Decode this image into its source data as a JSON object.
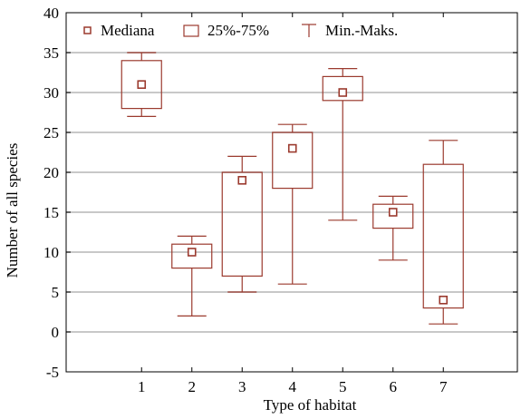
{
  "chart_data": {
    "type": "boxplot",
    "xlabel": "Type of habitat",
    "ylabel": "Number of all species",
    "ylim": [
      -5,
      40
    ],
    "yticks": [
      -5,
      0,
      5,
      10,
      15,
      20,
      25,
      30,
      35,
      40
    ],
    "categories": [
      "1",
      "2",
      "3",
      "4",
      "5",
      "6",
      "7"
    ],
    "grid": true,
    "legend_position": "top-left",
    "legend": {
      "median": "Mediana",
      "box": "25%-75%",
      "whisker": "Min.-Maks."
    },
    "colors": {
      "box": "#9b3a2e",
      "grid": "#c8c8c8",
      "axis": "#000000"
    },
    "boxes": [
      {
        "category": "1",
        "min": 27,
        "q1": 28,
        "median": 31,
        "q3": 34,
        "max": 35
      },
      {
        "category": "2",
        "min": 2,
        "q1": 8,
        "median": 10,
        "q3": 11,
        "max": 12
      },
      {
        "category": "3",
        "min": 5,
        "q1": 7,
        "median": 19,
        "q3": 20,
        "max": 22
      },
      {
        "category": "4",
        "min": 6,
        "q1": 18,
        "median": 23,
        "q3": 25,
        "max": 26
      },
      {
        "category": "5",
        "min": 14,
        "q1": 29,
        "median": 30,
        "q3": 32,
        "max": 33
      },
      {
        "category": "6",
        "min": 9,
        "q1": 13,
        "median": 15,
        "q3": 16,
        "max": 17
      },
      {
        "category": "7",
        "min": 1,
        "q1": 3,
        "median": 4,
        "q3": 21,
        "max": 24
      }
    ]
  }
}
